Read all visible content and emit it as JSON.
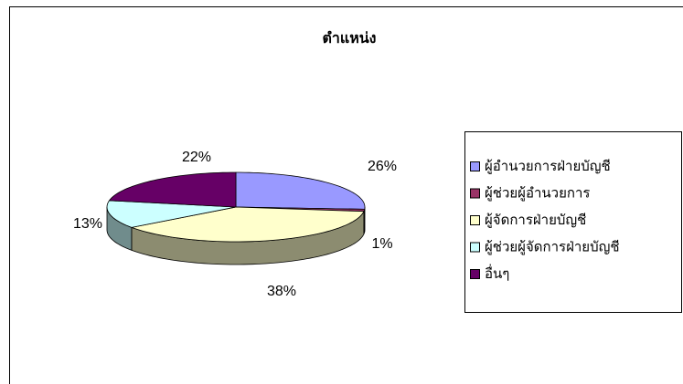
{
  "chart_data": {
    "type": "pie",
    "title": "ตำแหน่ง",
    "categories": [
      "ผู้อำนวยการฝ่ายบัญชี",
      "ผู้ช่วยผู้อำนวยการ",
      "ผู้จัดการฝ่ายบัญชี",
      "ผู้ช่วยผู้จัดการฝ่ายบัญชี",
      "อื่นๆ"
    ],
    "values": [
      26,
      1,
      38,
      13,
      22
    ],
    "value_labels": [
      "26%",
      "1%",
      "38%",
      "13%",
      "22%"
    ],
    "colors": [
      "#9999ff",
      "#993366",
      "#ffffcc",
      "#ccffff",
      "#660066"
    ],
    "legend": "right"
  }
}
